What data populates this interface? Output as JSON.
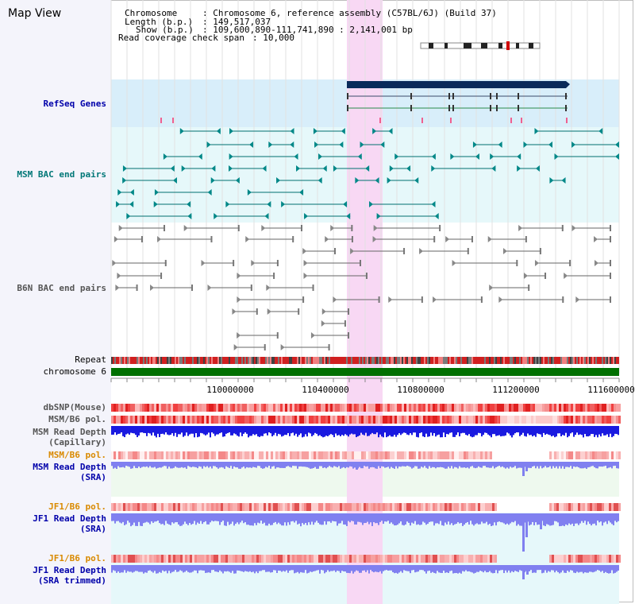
{
  "page": {
    "title": "Map View"
  },
  "info": {
    "chromosome_key": "Chromosome",
    "chromosome_value": ": Chromosome 6, reference assembly (C57BL/6J) (Build 37)",
    "length_key": "Length (b.p.)",
    "length_value": ": 149,517,037",
    "show_key": "Show (b.p.)",
    "show_value": ": 109,600,890-111,741,890 : 2,141,001 bp",
    "coverage_key": "Read coverage check span",
    "coverage_value": ": 10,000"
  },
  "tracks": {
    "refseq": "RefSeq Genes",
    "msm_bac": "MSM BAC end pairs",
    "b6n_bac": "B6N BAC end pairs",
    "repeat": "Repeat",
    "chromosome": "chromosome 6",
    "dbsnp": "dbSNP(Mouse)",
    "msm_b6_pol": "MSM/B6 pol.",
    "msm_depth_cap_1": "MSM Read Depth",
    "msm_depth_cap_2": "(Capillary)",
    "msm_b6_pol_sra": "MSM/B6 pol.",
    "msm_depth_sra_1": "MSM Read Depth",
    "msm_depth_sra_2": "(SRA)",
    "jf1_b6_pol": "JF1/B6 pol.",
    "jf1_depth_sra_1": "JF1 Read Depth",
    "jf1_depth_sra_2": "(SRA)",
    "jf1_b6_pol_trim": "JF1/B6 pol.",
    "jf1_depth_trim_1": "JF1 Read Depth",
    "jf1_depth_trim_2": "(SRA trimmed)"
  },
  "axis": {
    "ticks": [
      "110000000",
      "110400000",
      "110800000",
      "111200000",
      "111600000"
    ]
  },
  "colors": {
    "highlight": "#f8d8f4",
    "refseq_bg": "#d8eefa",
    "msm_bg": "#e6f8fa",
    "chromosome": "#007000",
    "depth_blue": "#1a1ae0",
    "depth_light": "#8080f0"
  }
}
